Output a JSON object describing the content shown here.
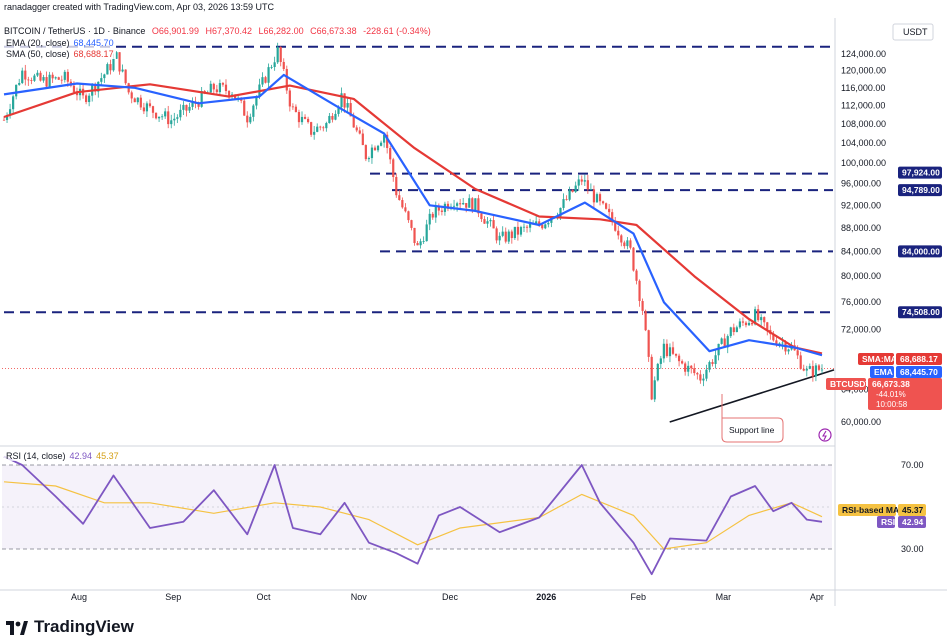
{
  "header": {
    "credit": "ranadagger created with TradingView.com, Apr 03, 2026 13:59 UTC"
  },
  "ohlc": {
    "symbol": "BITCOIN / TetherUS · 1D · Binance",
    "open": "O66,901.99",
    "high": "H67,370.42",
    "low": "L66,282.00",
    "close": "C66,673.38",
    "change": "-228.61 (-0.34%)",
    "change_color": "#f23645"
  },
  "indicators": {
    "ema_label": "EMA (20, close)",
    "ema_value": "68,445.70",
    "sma_label": "SMA (50, close)",
    "sma_value": "68,688.17",
    "rsi_label": "RSI (14, close)",
    "rsi_value": "42.94",
    "rsi_ma_value": "45.37"
  },
  "price_axis": {
    "currency": "USDT",
    "ticks": [
      "124,000.00",
      "120,000.00",
      "116,000.00",
      "112,000.00",
      "108,000.00",
      "104,000.00",
      "100,000.00",
      "96,000.00",
      "92,000.00",
      "88,000.00",
      "84,000.00",
      "80,000.00",
      "76,000.00",
      "72,000.00",
      "64,000.00",
      "60,000.00"
    ]
  },
  "rsi_axis": {
    "ticks": [
      "70.00",
      "30.00"
    ]
  },
  "time_axis": [
    "Aug",
    "Sep",
    "Oct",
    "Nov",
    "Dec",
    "2026",
    "Feb",
    "Mar",
    "Apr"
  ],
  "badges": {
    "level_97924": "97,924.00",
    "level_94789": "94,789.00",
    "level_84000": "84,000.00",
    "level_74508": "74,508.00",
    "sma_tag": "SMA:MA",
    "sma_value": "68,688.17",
    "ema_tag": "EMA",
    "ema_value": "68,445.70",
    "price_tag": "BTCUSDT",
    "price_value": "66,673.38",
    "price_pct": "-44.01%",
    "countdown": "10:00:58",
    "rsi_ma_tag": "RSI-based MA",
    "rsi_ma_value": "45.37",
    "rsi_tag": "RSI",
    "rsi_value": "42.94"
  },
  "annotations": {
    "support": "Support line"
  },
  "brand": "TradingView",
  "colors": {
    "up": "#26a69a",
    "down": "#ef5350",
    "ema": "#2962ff",
    "sma": "#e53935",
    "rsi": "#7e57c2",
    "rsi_ma": "#f5c242",
    "level": "#1a237e"
  },
  "chart_data": {
    "type": "candlestick",
    "symbol": "BTCUSDT",
    "interval": "1D",
    "y_scale": "log",
    "ylim": [
      58000,
      128000
    ],
    "period": [
      "2025-07-08",
      "2026-04-03"
    ],
    "horizontal_levels": [
      125800,
      97924,
      94789,
      84000,
      74508
    ],
    "support_line": {
      "from": [
        "2026-02-06",
        60000
      ],
      "to": [
        "2026-04-03",
        66500
      ]
    },
    "close_path": [
      [
        "2025-07-08",
        108900
      ],
      [
        "2025-07-14",
        119800
      ],
      [
        "2025-07-20",
        117500
      ],
      [
        "2025-07-28",
        118200
      ],
      [
        "2025-08-03",
        113500
      ],
      [
        "2025-08-10",
        119200
      ],
      [
        "2025-08-14",
        123300
      ],
      [
        "2025-08-18",
        115000
      ],
      [
        "2025-08-25",
        111200
      ],
      [
        "2025-09-01",
        108800
      ],
      [
        "2025-09-08",
        112000
      ],
      [
        "2025-09-15",
        116000
      ],
      [
        "2025-09-21",
        115300
      ],
      [
        "2025-09-26",
        109500
      ],
      [
        "2025-10-01",
        117000
      ],
      [
        "2025-10-06",
        124700
      ],
      [
        "2025-10-10",
        113000
      ],
      [
        "2025-10-11",
        111000
      ],
      [
        "2025-10-17",
        106500
      ],
      [
        "2025-10-22",
        108000
      ],
      [
        "2025-10-27",
        114200
      ],
      [
        "2025-11-04",
        101500
      ],
      [
        "2025-11-10",
        106000
      ],
      [
        "2025-11-14",
        94500
      ],
      [
        "2025-11-21",
        84500
      ],
      [
        "2025-11-26",
        90500
      ],
      [
        "2025-12-03",
        93200
      ],
      [
        "2025-12-10",
        92000
      ],
      [
        "2025-12-18",
        86000
      ],
      [
        "2025-12-25",
        87500
      ],
      [
        "2026-01-01",
        88800
      ],
      [
        "2026-01-07",
        91500
      ],
      [
        "2026-01-14",
        96800
      ],
      [
        "2026-01-20",
        92000
      ],
      [
        "2026-01-25",
        88500
      ],
      [
        "2026-01-30",
        84000
      ],
      [
        "2026-02-03",
        75000
      ],
      [
        "2026-02-06",
        63500
      ],
      [
        "2026-02-10",
        69500
      ],
      [
        "2026-02-15",
        67500
      ],
      [
        "2026-02-22",
        65500
      ],
      [
        "2026-02-27",
        68500
      ],
      [
        "2026-03-04",
        71800
      ],
      [
        "2026-03-12",
        74000
      ],
      [
        "2026-03-17",
        71000
      ],
      [
        "2026-03-24",
        69500
      ],
      [
        "2026-03-29",
        66200
      ],
      [
        "2026-04-03",
        66673
      ]
    ],
    "ema20_path": [
      [
        "2025-07-08",
        114500
      ],
      [
        "2025-08-01",
        117000
      ],
      [
        "2025-08-20",
        116000
      ],
      [
        "2025-09-10",
        112500
      ],
      [
        "2025-09-30",
        114000
      ],
      [
        "2025-10-08",
        119000
      ],
      [
        "2025-10-25",
        112000
      ],
      [
        "2025-11-10",
        106000
      ],
      [
        "2025-11-25",
        92000
      ],
      [
        "2025-12-10",
        91000
      ],
      [
        "2025-12-31",
        88500
      ],
      [
        "2026-01-15",
        92500
      ],
      [
        "2026-01-31",
        87000
      ],
      [
        "2026-02-10",
        76000
      ],
      [
        "2026-02-25",
        69000
      ],
      [
        "2026-03-10",
        70500
      ],
      [
        "2026-03-25",
        69500
      ],
      [
        "2026-04-03",
        68445.7
      ]
    ],
    "sma50_path": [
      [
        "2025-07-08",
        109500
      ],
      [
        "2025-08-01",
        115000
      ],
      [
        "2025-08-25",
        116800
      ],
      [
        "2025-09-20",
        114000
      ],
      [
        "2025-10-10",
        116500
      ],
      [
        "2025-10-31",
        113500
      ],
      [
        "2025-11-20",
        103000
      ],
      [
        "2025-12-10",
        95000
      ],
      [
        "2025-12-31",
        90000
      ],
      [
        "2026-01-20",
        89500
      ],
      [
        "2026-02-01",
        88500
      ],
      [
        "2026-02-20",
        80000
      ],
      [
        "2026-03-10",
        73500
      ],
      [
        "2026-03-25",
        69500
      ],
      [
        "2026-04-03",
        68688.17
      ]
    ],
    "rsi": {
      "ylim": [
        15,
        80
      ],
      "levels": [
        70,
        30
      ],
      "rsi_path": [
        [
          "2025-07-08",
          74
        ],
        [
          "2025-07-14",
          70
        ],
        [
          "2025-07-25",
          55
        ],
        [
          "2025-08-03",
          42
        ],
        [
          "2025-08-13",
          65
        ],
        [
          "2025-08-25",
          40
        ],
        [
          "2025-09-05",
          43
        ],
        [
          "2025-09-15",
          58
        ],
        [
          "2025-09-26",
          37
        ],
        [
          "2025-10-05",
          70
        ],
        [
          "2025-10-11",
          40
        ],
        [
          "2025-10-20",
          37
        ],
        [
          "2025-10-28",
          52
        ],
        [
          "2025-11-05",
          33
        ],
        [
          "2025-11-14",
          28
        ],
        [
          "2025-11-21",
          23
        ],
        [
          "2025-11-28",
          46
        ],
        [
          "2025-12-05",
          50
        ],
        [
          "2025-12-18",
          38
        ],
        [
          "2025-12-31",
          45
        ],
        [
          "2026-01-14",
          70
        ],
        [
          "2026-01-20",
          52
        ],
        [
          "2026-01-31",
          33
        ],
        [
          "2026-02-06",
          18
        ],
        [
          "2026-02-12",
          35
        ],
        [
          "2026-02-24",
          34
        ],
        [
          "2026-03-04",
          55
        ],
        [
          "2026-03-12",
          60
        ],
        [
          "2026-03-18",
          48
        ],
        [
          "2026-03-24",
          52
        ],
        [
          "2026-03-29",
          44
        ],
        [
          "2026-04-03",
          42.94
        ]
      ],
      "rsi_ma_path": [
        [
          "2025-07-08",
          62
        ],
        [
          "2025-07-25",
          60
        ],
        [
          "2025-08-10",
          52
        ],
        [
          "2025-08-25",
          52
        ],
        [
          "2025-09-15",
          47
        ],
        [
          "2025-10-05",
          52
        ],
        [
          "2025-10-20",
          50
        ],
        [
          "2025-11-05",
          44
        ],
        [
          "2025-11-21",
          32
        ],
        [
          "2025-12-05",
          40
        ],
        [
          "2025-12-31",
          45
        ],
        [
          "2026-01-14",
          56
        ],
        [
          "2026-01-31",
          46
        ],
        [
          "2026-02-10",
          30
        ],
        [
          "2026-02-24",
          33
        ],
        [
          "2026-03-10",
          46
        ],
        [
          "2026-03-24",
          52
        ],
        [
          "2026-04-03",
          45.37
        ]
      ]
    }
  }
}
